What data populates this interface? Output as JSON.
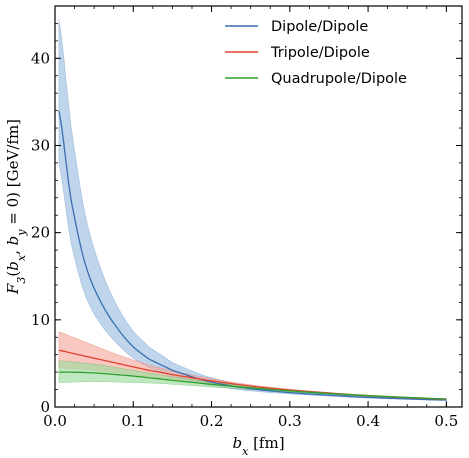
{
  "chart_data": {
    "type": "line",
    "xlabel": "b_x [fm]",
    "ylabel": "F_3(b_x, b_y = 0) [GeV/fm]",
    "xlim": [
      0.0,
      0.52
    ],
    "ylim": [
      0,
      46
    ],
    "xticks": [
      0.0,
      0.1,
      0.2,
      0.3,
      0.4,
      0.5
    ],
    "yticks": [
      0,
      10,
      20,
      30,
      40
    ],
    "xtick_labels": [
      "0.0",
      "0.1",
      "0.2",
      "0.3",
      "0.4",
      "0.5"
    ],
    "ytick_labels": [
      "0",
      "10",
      "20",
      "30",
      "40"
    ],
    "grid": false,
    "legend_position": "top-right",
    "x": [
      0.005,
      0.02,
      0.04,
      0.06,
      0.08,
      0.1,
      0.12,
      0.15,
      0.2,
      0.25,
      0.3,
      0.35,
      0.4,
      0.45,
      0.5
    ],
    "series": [
      {
        "name": "Dipole/Dipole",
        "color": "#3a6fb0",
        "band_color": "#9dbfe0",
        "values": [
          34.0,
          24.0,
          16.0,
          11.8,
          9.0,
          6.9,
          5.5,
          4.2,
          2.85,
          2.1,
          1.65,
          1.35,
          1.1,
          0.93,
          0.8
        ],
        "upper": [
          44.5,
          32.5,
          21.5,
          15.5,
          11.5,
          8.7,
          6.9,
          5.1,
          3.35,
          2.4,
          1.85,
          1.5,
          1.2,
          1.0,
          0.85
        ],
        "lower": [
          28.0,
          19.0,
          12.5,
          9.3,
          7.2,
          5.6,
          4.5,
          3.5,
          2.45,
          1.85,
          1.5,
          1.25,
          1.02,
          0.87,
          0.75
        ]
      },
      {
        "name": "Tripole/Dipole",
        "color": "#e0432e",
        "band_color": "#f5aaa0",
        "values": [
          6.5,
          6.2,
          5.8,
          5.4,
          5.0,
          4.6,
          4.2,
          3.7,
          3.0,
          2.4,
          1.95,
          1.6,
          1.3,
          1.08,
          0.9
        ],
        "upper": [
          8.6,
          8.1,
          7.4,
          6.7,
          6.0,
          5.4,
          4.8,
          4.1,
          3.25,
          2.55,
          2.05,
          1.67,
          1.35,
          1.12,
          0.93
        ],
        "lower": [
          4.5,
          4.4,
          4.3,
          4.1,
          3.9,
          3.7,
          3.5,
          3.2,
          2.7,
          2.2,
          1.82,
          1.5,
          1.22,
          1.02,
          0.86
        ]
      },
      {
        "name": "Quadrupole/Dipole",
        "color": "#2ca02c",
        "band_color": "#9edc9e",
        "values": [
          4.0,
          4.0,
          3.95,
          3.85,
          3.7,
          3.55,
          3.35,
          3.05,
          2.6,
          2.2,
          1.85,
          1.55,
          1.3,
          1.1,
          0.93
        ],
        "upper": [
          5.3,
          5.2,
          5.0,
          4.8,
          4.5,
          4.2,
          3.9,
          3.45,
          2.85,
          2.35,
          1.95,
          1.63,
          1.36,
          1.14,
          0.96
        ],
        "lower": [
          2.8,
          2.85,
          2.9,
          2.9,
          2.85,
          2.8,
          2.75,
          2.6,
          2.3,
          2.0,
          1.72,
          1.47,
          1.24,
          1.05,
          0.9
        ]
      }
    ]
  }
}
